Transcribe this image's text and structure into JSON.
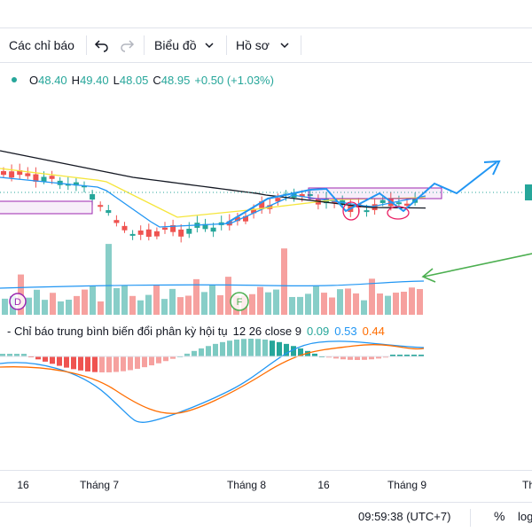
{
  "toolbar": {
    "indicators_label": "Các chỉ báo",
    "chart_label": "Biểu đồ",
    "profile_label": "Hồ sơ"
  },
  "ohlc": {
    "o_label": "O",
    "o_value": "48.40",
    "h_label": "H",
    "h_value": "49.40",
    "l_label": "L",
    "l_value": "48.05",
    "c_label": "C",
    "c_value": "48.95",
    "change": "+0.50 (+1.03%)",
    "color": "#26a69a"
  },
  "macd": {
    "title": "- Chỉ báo trung bình biến đổi phân kỳ hội tụ",
    "params": "12 26 close 9",
    "hist_value": "0.09",
    "macd_value": "0.53",
    "signal_value": "0.44",
    "colors": {
      "hist": "#26a69a",
      "macd": "#2196f3",
      "signal": "#ff6d00"
    }
  },
  "events": {
    "d_label": "D",
    "f_label": "F"
  },
  "time_axis": {
    "ticks": [
      "16",
      "Tháng 7",
      "Tháng 8",
      "16",
      "Tháng 9",
      "Th"
    ]
  },
  "status": {
    "clock": "09:59:38 (UTC+7)",
    "percent": "%",
    "log": "log"
  },
  "colors": {
    "up": "#26a69a",
    "down": "#ef5350",
    "accent": "#2962ff"
  }
}
